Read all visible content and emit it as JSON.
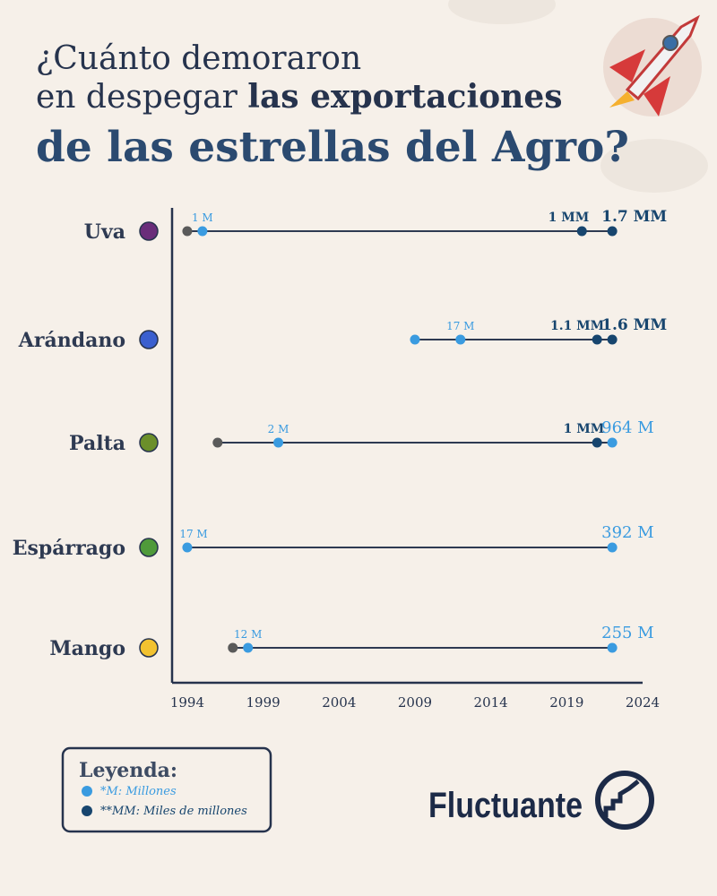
{
  "title_lines": {
    "line1": "¿Cuánto demoraron",
    "line2a": "en despegar",
    "line2b": "las exportaciones",
    "line3": "de las estrellas del Agro?"
  },
  "chart_data": {
    "type": "dumbbell",
    "xlim": [
      1993,
      2024
    ],
    "xticks": [
      1994,
      1999,
      2004,
      2009,
      2014,
      2019,
      2024
    ],
    "rows": [
      {
        "name": "Uva",
        "points": [
          {
            "x": 1994,
            "color": "#5a5a5a"
          },
          {
            "x": 1995,
            "label": "1 M",
            "color": "#3a9be0"
          },
          {
            "x": 2020,
            "label": "1 MM",
            "color": "#17456e"
          },
          {
            "x": 2022,
            "label": "1.7 MM",
            "color": "#17456e"
          }
        ]
      },
      {
        "name": "Arándano",
        "points": [
          {
            "x": 2009,
            "color": "#3a9be0"
          },
          {
            "x": 2012,
            "label": "17 M",
            "color": "#3a9be0"
          },
          {
            "x": 2021,
            "label": "1.1 MM",
            "color": "#17456e"
          },
          {
            "x": 2022,
            "label": "1.6 MM",
            "color": "#17456e"
          }
        ]
      },
      {
        "name": "Palta",
        "points": [
          {
            "x": 1996,
            "color": "#5a5a5a"
          },
          {
            "x": 2000,
            "label": "2 M",
            "color": "#3a9be0"
          },
          {
            "x": 2021,
            "label": "1 MM",
            "color": "#17456e"
          },
          {
            "x": 2022,
            "label": "964 M",
            "color": "#3a9be0"
          }
        ]
      },
      {
        "name": "Espárrago",
        "points": [
          {
            "x": 1994,
            "label": "17 M",
            "color": "#3a9be0"
          },
          {
            "x": 2022,
            "label": "392 M",
            "color": "#3a9be0"
          }
        ]
      },
      {
        "name": "Mango",
        "points": [
          {
            "x": 1997,
            "color": "#5a5a5a"
          },
          {
            "x": 1998,
            "label": "12 M",
            "color": "#3a9be0"
          },
          {
            "x": 2022,
            "label": "255 M",
            "color": "#3a9be0"
          }
        ]
      }
    ],
    "legend": {
      "title": "Leyenda:",
      "items": [
        {
          "name": "*M: Millones",
          "color": "#3a9be0"
        },
        {
          "name": "**MM: Miles de millones",
          "color": "#17456e"
        }
      ]
    }
  },
  "brand": "Fluctuante"
}
